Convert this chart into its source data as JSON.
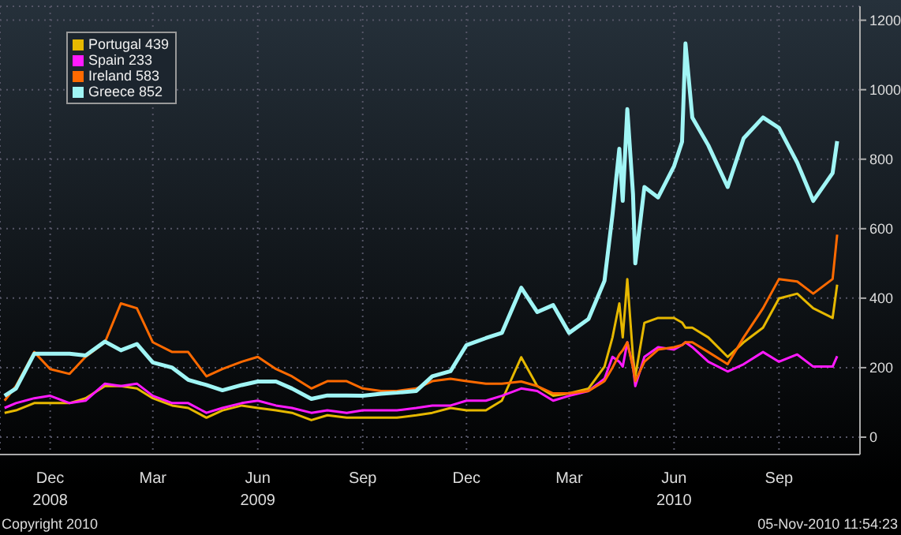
{
  "chart_data": {
    "type": "line",
    "x": [
      "2008-11-05",
      "2008-11-15",
      "2008-12-01",
      "2008-12-15",
      "2009-01-01",
      "2009-01-15",
      "2009-02-01",
      "2009-02-15",
      "2009-03-01",
      "2009-03-15",
      "2009-04-01",
      "2009-04-15",
      "2009-05-01",
      "2009-05-15",
      "2009-06-01",
      "2009-06-15",
      "2009-07-01",
      "2009-07-15",
      "2009-08-01",
      "2009-08-15",
      "2009-09-01",
      "2009-09-15",
      "2009-10-01",
      "2009-10-15",
      "2009-11-01",
      "2009-11-15",
      "2009-12-01",
      "2009-12-15",
      "2010-01-01",
      "2010-01-15",
      "2010-02-01",
      "2010-02-15",
      "2010-03-01",
      "2010-03-15",
      "2010-04-01",
      "2010-04-15",
      "2010-04-22",
      "2010-04-28",
      "2010-05-01",
      "2010-05-05",
      "2010-05-10",
      "2010-05-12",
      "2010-05-20",
      "2010-06-01",
      "2010-06-15",
      "2010-06-22",
      "2010-06-25",
      "2010-07-01",
      "2010-07-15",
      "2010-08-01",
      "2010-08-15",
      "2010-09-01",
      "2010-09-15",
      "2010-10-01",
      "2010-10-15",
      "2010-11-01",
      "2010-11-05"
    ],
    "series": [
      {
        "name": "Portugal 439",
        "color": "#e6b800",
        "values": [
          70,
          77,
          98,
          98,
          98,
          112,
          147,
          147,
          140,
          112,
          91,
          84,
          56,
          77,
          91,
          84,
          77,
          70,
          49,
          63,
          56,
          56,
          56,
          56,
          63,
          70,
          84,
          77,
          77,
          105,
          230,
          147,
          119,
          126,
          140,
          203,
          287,
          385,
          287,
          455,
          231,
          175,
          329,
          343,
          343,
          330,
          315,
          315,
          287,
          231,
          273,
          315,
          399,
          413,
          371,
          343,
          439
        ]
      },
      {
        "name": "Spain 233",
        "color": "#ff1aff",
        "values": [
          84,
          98,
          112,
          119,
          98,
          105,
          154,
          147,
          154,
          119,
          98,
          98,
          70,
          84,
          98,
          105,
          91,
          84,
          70,
          77,
          70,
          77,
          77,
          77,
          84,
          91,
          91,
          105,
          105,
          119,
          140,
          133,
          105,
          119,
          133,
          168,
          231,
          217,
          203,
          273,
          203,
          147,
          231,
          259,
          252,
          265,
          273,
          259,
          217,
          189,
          210,
          245,
          217,
          238,
          203,
          203,
          233
        ]
      },
      {
        "name": "Ireland 583",
        "color": "#ff6a00",
        "values": [
          105,
          147,
          245,
          196,
          182,
          231,
          273,
          385,
          371,
          273,
          245,
          245,
          175,
          196,
          217,
          231,
          196,
          175,
          140,
          161,
          161,
          140,
          133,
          133,
          140,
          161,
          168,
          161,
          154,
          154,
          160,
          147,
          126,
          126,
          133,
          161,
          200,
          238,
          250,
          273,
          200,
          161,
          217,
          252,
          259,
          265,
          273,
          273,
          245,
          210,
          287,
          371,
          455,
          448,
          413,
          455,
          583
        ]
      },
      {
        "name": "Greece 852",
        "color": "#a0f5f5",
        "values": [
          119,
          140,
          240,
          240,
          240,
          235,
          275,
          250,
          268,
          215,
          200,
          165,
          150,
          135,
          150,
          160,
          160,
          140,
          110,
          120,
          120,
          119,
          125,
          128,
          133,
          175,
          190,
          265,
          285,
          300,
          430,
          360,
          380,
          300,
          340,
          450,
          640,
          830,
          680,
          944,
          700,
          500,
          720,
          690,
          780,
          850,
          1133,
          920,
          840,
          720,
          860,
          920,
          890,
          790,
          680,
          760,
          852
        ]
      }
    ],
    "xlim": [
      "2008-11-01",
      "2010-11-25"
    ],
    "xticks": [
      {
        "value": "2008-12-15",
        "label": "Dec\n2008"
      },
      {
        "value": "2009-03-15",
        "label": "Mar"
      },
      {
        "value": "2009-06-15",
        "label": "Jun\n2009"
      },
      {
        "value": "2009-09-15",
        "label": "Sep"
      },
      {
        "value": "2009-12-15",
        "label": "Dec"
      },
      {
        "value": "2010-03-15",
        "label": "Mar"
      },
      {
        "value": "2010-06-15",
        "label": "Jun\n2010"
      },
      {
        "value": "2010-09-15",
        "label": "Sep"
      }
    ],
    "ylim": [
      -50,
      1240
    ],
    "yticks": [
      0,
      200,
      400,
      600,
      800,
      1000,
      1200
    ],
    "grid": true,
    "legend": "top left",
    "annotations": [
      "Copyright 2010",
      "05-Nov-2010 11:54:23"
    ]
  }
}
